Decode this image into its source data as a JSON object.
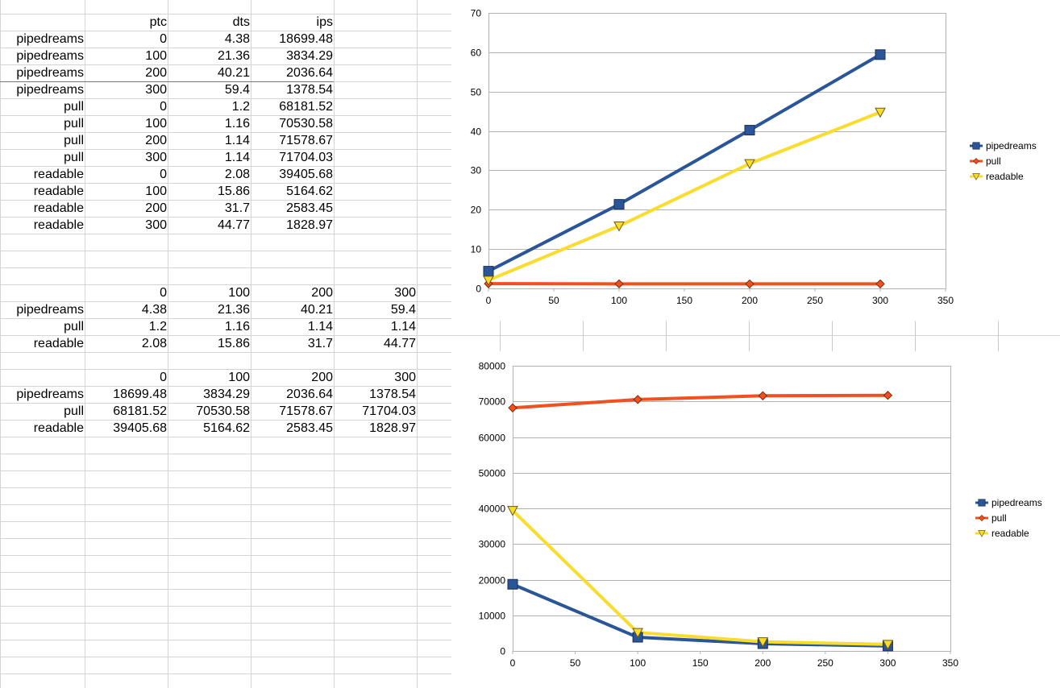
{
  "table1": {
    "headers": [
      "ptc",
      "dts",
      "ips"
    ],
    "rows": [
      [
        "pipedreams",
        "0",
        "4.38",
        "18699.48"
      ],
      [
        "pipedreams",
        "100",
        "21.36",
        "3834.29"
      ],
      [
        "pipedreams",
        "200",
        "40.21",
        "2036.64"
      ],
      [
        "pipedreams",
        "300",
        "59.4",
        "1378.54"
      ],
      [
        "pull",
        "0",
        "1.2",
        "68181.52"
      ],
      [
        "pull",
        "100",
        "1.16",
        "70530.58"
      ],
      [
        "pull",
        "200",
        "1.14",
        "71578.67"
      ],
      [
        "pull",
        "300",
        "1.14",
        "71704.03"
      ],
      [
        "readable",
        "0",
        "2.08",
        "39405.68"
      ],
      [
        "readable",
        "100",
        "15.86",
        "5164.62"
      ],
      [
        "readable",
        "200",
        "31.7",
        "2583.45"
      ],
      [
        "readable",
        "300",
        "44.77",
        "1828.97"
      ]
    ]
  },
  "table2": {
    "headers": [
      "0",
      "100",
      "200",
      "300"
    ],
    "rows": [
      [
        "pipedreams",
        "4.38",
        "21.36",
        "40.21",
        "59.4"
      ],
      [
        "pull",
        "1.2",
        "1.16",
        "1.14",
        "1.14"
      ],
      [
        "readable",
        "2.08",
        "15.86",
        "31.7",
        "44.77"
      ]
    ]
  },
  "table3": {
    "headers": [
      "0",
      "100",
      "200",
      "300"
    ],
    "rows": [
      [
        "pipedreams",
        "18699.48",
        "3834.29",
        "2036.64",
        "1378.54"
      ],
      [
        "pull",
        "68181.52",
        "70530.58",
        "71578.67",
        "71704.03"
      ],
      [
        "readable",
        "39405.68",
        "5164.62",
        "2583.45",
        "1828.97"
      ]
    ]
  },
  "chart_data": [
    {
      "type": "line",
      "title": "",
      "xlabel": "",
      "ylabel": "",
      "x": [
        0,
        100,
        200,
        300
      ],
      "xlim": [
        0,
        350
      ],
      "ylim": [
        0,
        70
      ],
      "xticks": [
        0,
        50,
        100,
        150,
        200,
        250,
        300,
        350
      ],
      "yticks": [
        0,
        10,
        20,
        30,
        40,
        50,
        60,
        70
      ],
      "grid": true,
      "legend": "right",
      "series": [
        {
          "name": "pipedreams",
          "values": [
            4.38,
            21.36,
            40.21,
            59.4
          ],
          "color": "#2a5599",
          "marker": "square"
        },
        {
          "name": "pull",
          "values": [
            1.2,
            1.16,
            1.14,
            1.14
          ],
          "color": "#f2501e",
          "marker": "diamond"
        },
        {
          "name": "readable",
          "values": [
            2.08,
            15.86,
            31.7,
            44.77
          ],
          "color": "#f9dc2e",
          "marker": "triangle-down"
        }
      ]
    },
    {
      "type": "line",
      "title": "",
      "xlabel": "",
      "ylabel": "",
      "x": [
        0,
        100,
        200,
        300
      ],
      "xlim": [
        0,
        350
      ],
      "ylim": [
        0,
        80000
      ],
      "xticks": [
        0,
        50,
        100,
        150,
        200,
        250,
        300,
        350
      ],
      "yticks": [
        0,
        10000,
        20000,
        30000,
        40000,
        50000,
        60000,
        70000,
        80000
      ],
      "grid": true,
      "legend": "right",
      "series": [
        {
          "name": "pipedreams",
          "values": [
            18699.48,
            3834.29,
            2036.64,
            1378.54
          ],
          "color": "#2a5599",
          "marker": "square"
        },
        {
          "name": "pull",
          "values": [
            68181.52,
            70530.58,
            71578.67,
            71704.03
          ],
          "color": "#f2501e",
          "marker": "diamond"
        },
        {
          "name": "readable",
          "values": [
            39405.68,
            5164.62,
            2583.45,
            1828.97
          ],
          "color": "#f9dc2e",
          "marker": "triangle-down"
        }
      ]
    }
  ]
}
